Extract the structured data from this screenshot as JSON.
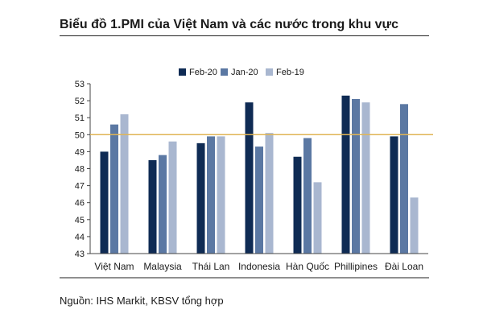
{
  "header": {
    "title": "Biểu đồ 1.PMI của Việt Nam và các nước trong khu vực"
  },
  "footer": {
    "source": "Nguồn: IHS Markit, KBSV tổng hợp"
  },
  "chart_data": {
    "type": "bar",
    "categories": [
      "Việt Nam",
      "Malaysia",
      "Thái Lan",
      "Indonesia",
      "Hàn Quốc",
      "Phillipines",
      "Đài Loan"
    ],
    "series": [
      {
        "name": "Feb-20",
        "color": "#0f2b54",
        "values": [
          49.0,
          48.5,
          49.5,
          51.9,
          48.7,
          52.3,
          49.9
        ]
      },
      {
        "name": "Jan-20",
        "color": "#5b78a3",
        "values": [
          50.6,
          48.8,
          49.9,
          49.3,
          49.8,
          52.1,
          51.8
        ]
      },
      {
        "name": "Feb-19",
        "color": "#a9b7d0",
        "values": [
          51.2,
          49.6,
          49.9,
          50.1,
          47.2,
          51.9,
          46.3
        ]
      }
    ],
    "ylim": [
      43,
      53
    ],
    "yticks": [
      43,
      44,
      45,
      46,
      47,
      48,
      49,
      50,
      51,
      52,
      53
    ],
    "reference_line": {
      "value": 50,
      "color": "#e0b454"
    },
    "legend_position": "top-center",
    "grid": false
  }
}
